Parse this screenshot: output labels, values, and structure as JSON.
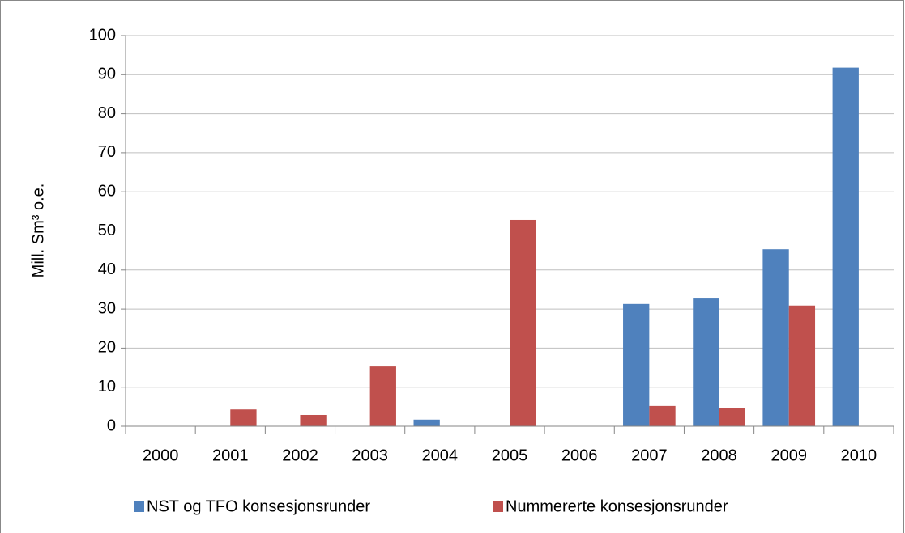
{
  "chart_data": {
    "type": "bar",
    "y_label": "Mill. Sm³ o.e.",
    "categories": [
      "2000",
      "2001",
      "2002",
      "2003",
      "2004",
      "2005",
      "2006",
      "2007",
      "2008",
      "2009",
      "2010"
    ],
    "series": [
      {
        "name": "NST og TFO konsesjonsrunder",
        "color": "#4f81bd",
        "values": [
          0,
          0,
          0,
          0,
          1.7,
          0,
          0,
          31.3,
          32.7,
          45.3,
          91.8
        ]
      },
      {
        "name": "Nummererte konsesjonsrunder",
        "color": "#c0504d",
        "values": [
          0,
          4.3,
          2.9,
          15.3,
          0,
          52.8,
          0,
          5.2,
          4.7,
          30.9,
          0
        ]
      }
    ],
    "ylim": [
      0,
      100
    ],
    "yticks": [
      0,
      10,
      20,
      30,
      40,
      50,
      60,
      70,
      80,
      90,
      100
    ],
    "grid": true,
    "legend": "bottom"
  }
}
